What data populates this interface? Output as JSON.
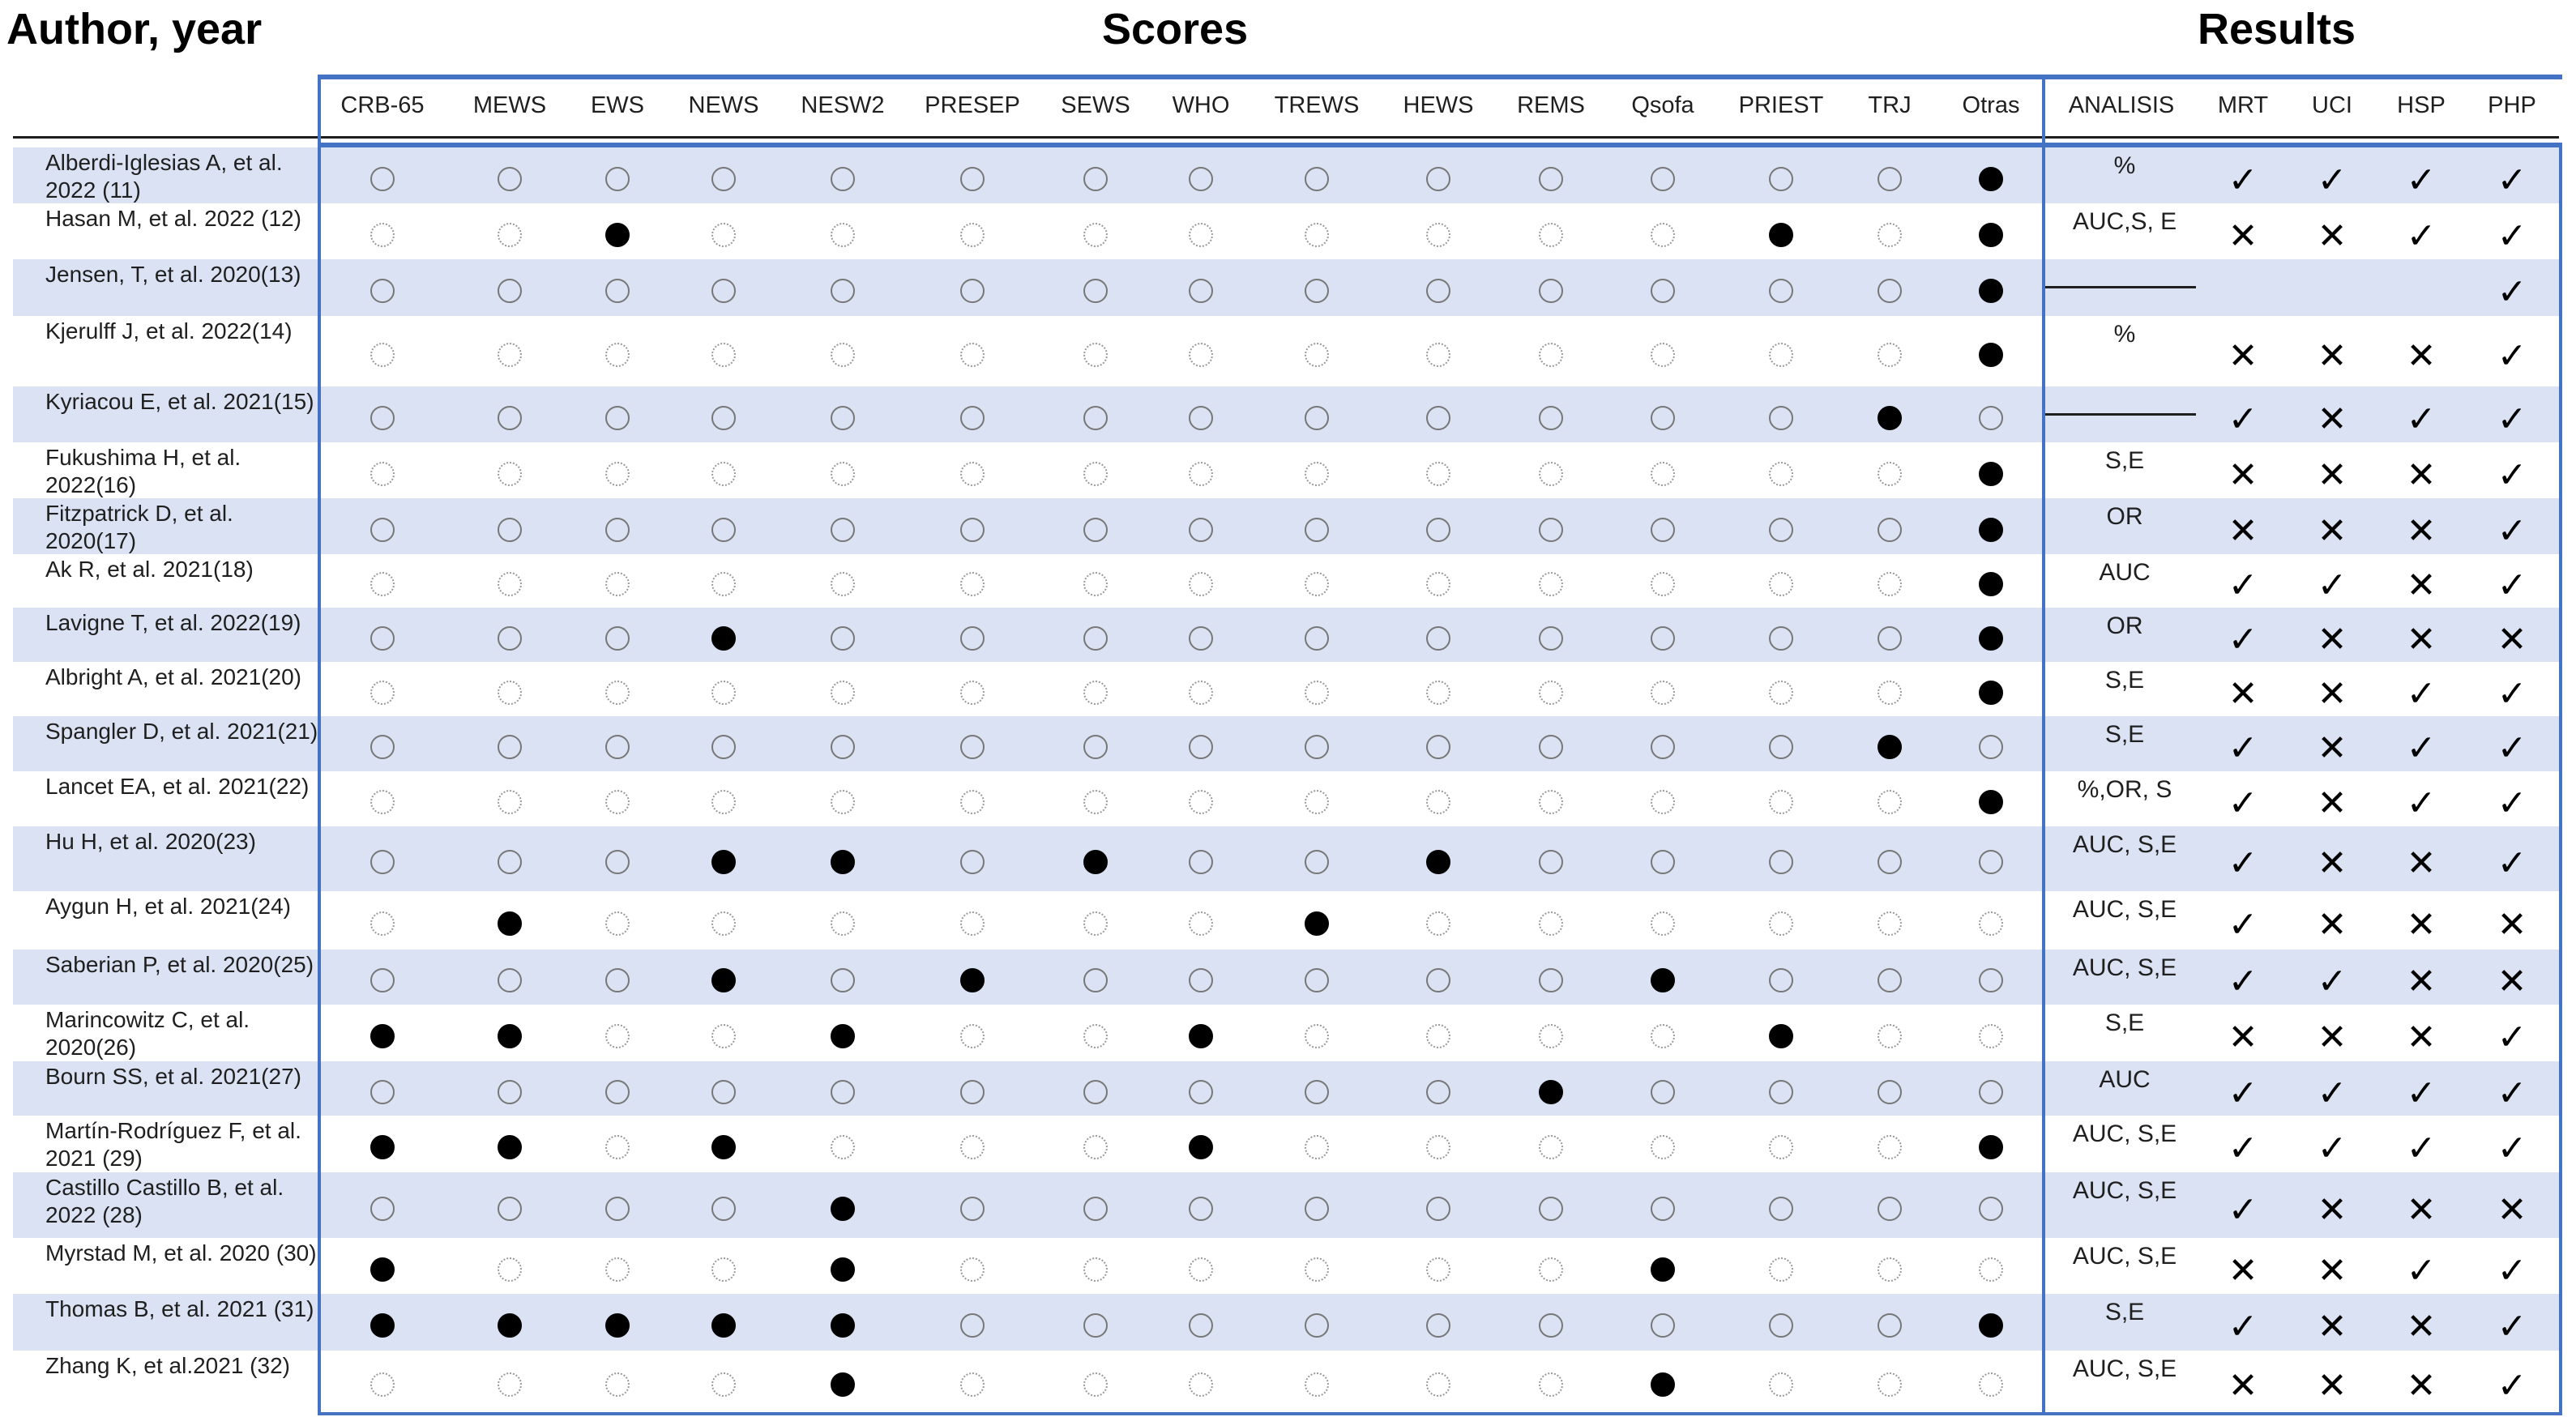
{
  "headers": {
    "author": "Author, year",
    "scores": "Scores",
    "results": "Results"
  },
  "score_columns": [
    "CRB-65",
    "MEWS",
    "EWS",
    "NEWS",
    "NESW2",
    "PRESEP",
    "SEWS",
    "WHO",
    "TREWS",
    "HEWS",
    "REMS",
    "Qsofa",
    "PRIEST",
    "TRJ",
    "Otras"
  ],
  "result_columns": [
    "ANALISIS",
    "MRT",
    "UCI",
    "HSP",
    "PHP"
  ],
  "rows": [
    {
      "author": "Alberdi-Iglesias A, et al. 2022 (11)",
      "scores": [
        0,
        0,
        0,
        0,
        0,
        0,
        0,
        0,
        0,
        0,
        0,
        0,
        0,
        0,
        1
      ],
      "analisis": "%",
      "results": [
        "check",
        "check",
        "check",
        "check"
      ]
    },
    {
      "author": "Hasan M, et al.  2022 (12)",
      "scores": [
        0,
        0,
        1,
        0,
        0,
        0,
        0,
        0,
        0,
        0,
        0,
        0,
        1,
        0,
        1
      ],
      "analisis": "AUC,S, E",
      "results": [
        "cross",
        "cross",
        "check",
        "check"
      ]
    },
    {
      "author": "Jensen, T, et al. 2020(13)",
      "scores": [
        0,
        0,
        0,
        0,
        0,
        0,
        0,
        0,
        0,
        0,
        0,
        0,
        0,
        0,
        1
      ],
      "analisis": "",
      "results": [
        "",
        "",
        "",
        "check"
      ]
    },
    {
      "author": "Kjerulff J, et al. 2022(14)",
      "scores": [
        0,
        0,
        0,
        0,
        0,
        0,
        0,
        0,
        0,
        0,
        0,
        0,
        0,
        0,
        1
      ],
      "analisis": "%",
      "results": [
        "cross",
        "cross",
        "cross",
        "check"
      ]
    },
    {
      "author": "Kyriacou E, et al. 2021(15)",
      "scores": [
        0,
        0,
        0,
        0,
        0,
        0,
        0,
        0,
        0,
        0,
        0,
        0,
        0,
        1,
        0
      ],
      "analisis": "",
      "results": [
        "check",
        "cross",
        "check",
        "check"
      ]
    },
    {
      "author": "Fukushima H, et al. 2022(16)",
      "scores": [
        0,
        0,
        0,
        0,
        0,
        0,
        0,
        0,
        0,
        0,
        0,
        0,
        0,
        0,
        1
      ],
      "analisis": "S,E",
      "results": [
        "cross",
        "cross",
        "cross",
        "check"
      ]
    },
    {
      "author": "Fitzpatrick D, et al. 2020(17)",
      "scores": [
        0,
        0,
        0,
        0,
        0,
        0,
        0,
        0,
        0,
        0,
        0,
        0,
        0,
        0,
        1
      ],
      "analisis": "OR",
      "results": [
        "cross",
        "cross",
        "cross",
        "check"
      ]
    },
    {
      "author": "Ak R, et al.    2021(18)",
      "scores": [
        0,
        0,
        0,
        0,
        0,
        0,
        0,
        0,
        0,
        0,
        0,
        0,
        0,
        0,
        1
      ],
      "analisis": "AUC",
      "results": [
        "check",
        "check",
        "cross",
        "check"
      ]
    },
    {
      "author": "Lavigne T, et al. 2022(19)",
      "scores": [
        0,
        0,
        0,
        1,
        0,
        0,
        0,
        0,
        0,
        0,
        0,
        0,
        0,
        0,
        1
      ],
      "analisis": "OR",
      "results": [
        "check",
        "cross",
        "cross",
        "cross"
      ]
    },
    {
      "author": "Albright A, et al. 2021(20)",
      "scores": [
        0,
        0,
        0,
        0,
        0,
        0,
        0,
        0,
        0,
        0,
        0,
        0,
        0,
        0,
        1
      ],
      "analisis": "S,E",
      "results": [
        "cross",
        "cross",
        "check",
        "check"
      ]
    },
    {
      "author": "Spangler D, et al. 2021(21)",
      "scores": [
        0,
        0,
        0,
        0,
        0,
        0,
        0,
        0,
        0,
        0,
        0,
        0,
        0,
        1,
        0
      ],
      "analisis": "S,E",
      "results": [
        "check",
        "cross",
        "check",
        "check"
      ]
    },
    {
      "author": "Lancet EA, et al. 2021(22)",
      "scores": [
        0,
        0,
        0,
        0,
        0,
        0,
        0,
        0,
        0,
        0,
        0,
        0,
        0,
        0,
        1
      ],
      "analisis": "%,OR, S",
      "results": [
        "check",
        "cross",
        "check",
        "check"
      ]
    },
    {
      "author": "Hu H, et al. 2020(23)",
      "scores": [
        0,
        0,
        0,
        1,
        1,
        0,
        1,
        0,
        0,
        1,
        0,
        0,
        0,
        0,
        0
      ],
      "analisis": "AUC, S,E",
      "results": [
        "check",
        "cross",
        "cross",
        "check"
      ]
    },
    {
      "author": "Aygun H, et al. 2021(24)",
      "scores": [
        0,
        1,
        0,
        0,
        0,
        0,
        0,
        0,
        1,
        0,
        0,
        0,
        0,
        0,
        0
      ],
      "analisis": "AUC, S,E",
      "results": [
        "check",
        "cross",
        "cross",
        "cross"
      ]
    },
    {
      "author": "Saberian P, et al. 2020(25)",
      "scores": [
        0,
        0,
        0,
        1,
        0,
        1,
        0,
        0,
        0,
        0,
        0,
        1,
        0,
        0,
        0
      ],
      "analisis": "AUC, S,E",
      "results": [
        "check",
        "check",
        "cross",
        "cross"
      ]
    },
    {
      "author": "Marincowitz C, et al. 2020(26)",
      "scores": [
        1,
        1,
        0,
        0,
        1,
        0,
        0,
        1,
        0,
        0,
        0,
        0,
        1,
        0,
        0
      ],
      "analisis": "S,E",
      "results": [
        "cross",
        "cross",
        "cross",
        "check"
      ]
    },
    {
      "author": "Bourn SS, et al. 2021(27)",
      "scores": [
        0,
        0,
        0,
        0,
        0,
        0,
        0,
        0,
        0,
        0,
        1,
        0,
        0,
        0,
        0
      ],
      "analisis": "AUC",
      "results": [
        "check",
        "check",
        "check",
        "check"
      ]
    },
    {
      "author": "Martín-Rodríguez F, et al. 2021 (29)",
      "scores": [
        1,
        1,
        0,
        1,
        0,
        0,
        0,
        1,
        0,
        0,
        0,
        0,
        0,
        0,
        1
      ],
      "analisis": "AUC, S,E",
      "results": [
        "check",
        "check",
        "check",
        "check"
      ]
    },
    {
      "author": "Castillo Castillo B, et al. 2022 (28)",
      "scores": [
        0,
        0,
        0,
        0,
        1,
        0,
        0,
        0,
        0,
        0,
        0,
        0,
        0,
        0,
        0
      ],
      "analisis": "AUC, S,E",
      "results": [
        "check",
        "cross",
        "cross",
        "cross"
      ]
    },
    {
      "author": "Myrstad M, et al. 2020 (30)",
      "scores": [
        1,
        0,
        0,
        0,
        1,
        0,
        0,
        0,
        0,
        0,
        0,
        1,
        0,
        0,
        0
      ],
      "analisis": "AUC, S,E",
      "results": [
        "cross",
        "cross",
        "check",
        "check"
      ]
    },
    {
      "author": "Thomas B, et al. 2021 (31)",
      "scores": [
        1,
        1,
        1,
        1,
        1,
        0,
        0,
        0,
        0,
        0,
        0,
        0,
        0,
        0,
        1
      ],
      "analisis": "S,E",
      "results": [
        "check",
        "cross",
        "cross",
        "check"
      ]
    },
    {
      "author": "Zhang K, et al.2021 (32)",
      "scores": [
        0,
        0,
        0,
        0,
        1,
        0,
        0,
        0,
        0,
        0,
        0,
        1,
        0,
        0,
        0
      ],
      "analisis": "AUC, S,E",
      "results": [
        "cross",
        "cross",
        "cross",
        "check"
      ]
    }
  ],
  "marks": {
    "check": "✓",
    "cross": "✕"
  },
  "colors": {
    "accent": "#4472c4",
    "row_shade": "#dbe2f3"
  }
}
